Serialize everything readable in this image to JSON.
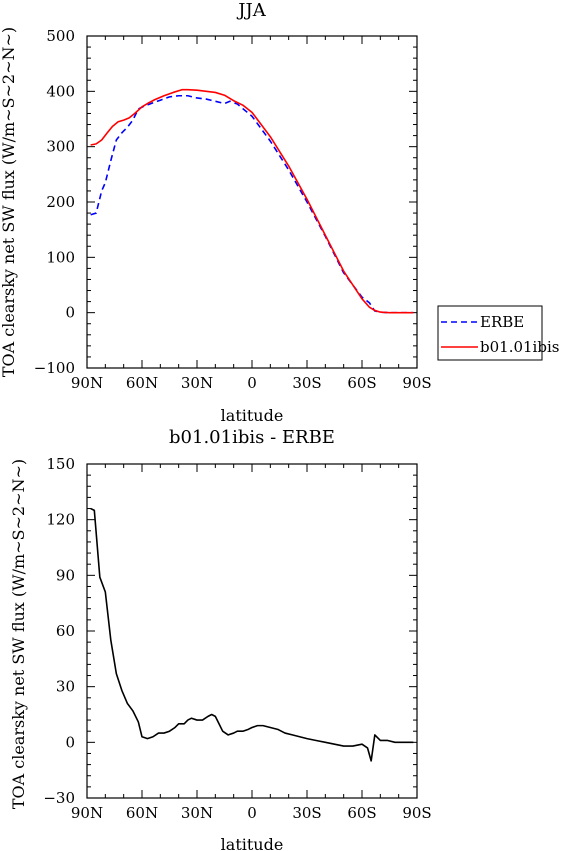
{
  "chart_data": [
    {
      "type": "line",
      "title": "JJA",
      "xlabel": "latitude",
      "ylabel": "TOA clearsky net SW flux (W/m~S~2~N~)",
      "xlim": [
        90,
        -90
      ],
      "ylim": [
        -100,
        500
      ],
      "xticks": [
        90,
        60,
        30,
        0,
        -30,
        -60,
        -90
      ],
      "xtick_labels": [
        "90N",
        "60N",
        "30N",
        "0",
        "30S",
        "60S",
        "90S"
      ],
      "yticks": [
        -100,
        0,
        100,
        200,
        300,
        400,
        500
      ],
      "ytick_labels": [
        "−100",
        "0",
        "100",
        "200",
        "300",
        "400",
        "500"
      ],
      "legend_position": "right",
      "series": [
        {
          "name": "ERBE",
          "color": "#0000ff",
          "dash": "dashed",
          "x": [
            88,
            85,
            82,
            80,
            77,
            74,
            71,
            68,
            65,
            62,
            59,
            55,
            50,
            45,
            40,
            35,
            30,
            25,
            20,
            15,
            12,
            8,
            0,
            -10,
            -20,
            -30,
            -40,
            -50,
            -60,
            -64,
            -67,
            -70,
            -75,
            -80,
            -88
          ],
          "y": [
            177,
            180,
            220,
            235,
            275,
            312,
            325,
            335,
            348,
            368,
            373,
            378,
            384,
            390,
            392,
            392,
            388,
            386,
            382,
            378,
            382,
            377,
            355,
            310,
            258,
            200,
            138,
            72,
            28,
            18,
            3,
            1,
            0,
            0,
            0
          ]
        },
        {
          "name": "b01.01ibis",
          "color": "#ff0000",
          "dash": "solid",
          "x": [
            88,
            85,
            82,
            79,
            76,
            73,
            70,
            67,
            64,
            60,
            57,
            53,
            48,
            43,
            38,
            35,
            30,
            25,
            20,
            15,
            10,
            5,
            0,
            -10,
            -20,
            -30,
            -40,
            -50,
            -60,
            -64,
            -67,
            -70,
            -75,
            -80,
            -88
          ],
          "y": [
            303,
            305,
            312,
            325,
            337,
            345,
            348,
            352,
            360,
            372,
            378,
            385,
            392,
            398,
            403,
            403,
            402,
            400,
            398,
            393,
            383,
            375,
            362,
            318,
            265,
            205,
            140,
            75,
            25,
            10,
            4,
            1,
            0,
            0,
            0
          ]
        }
      ]
    },
    {
      "type": "line",
      "title": "b01.01ibis - ERBE",
      "xlabel": "latitude",
      "ylabel": "TOA clearsky net SW flux (W/m~S~2~N~)",
      "xlim": [
        90,
        -90
      ],
      "ylim": [
        -30,
        150
      ],
      "xticks": [
        90,
        60,
        30,
        0,
        -30,
        -60,
        -90
      ],
      "xtick_labels": [
        "90N",
        "60N",
        "30N",
        "0",
        "30S",
        "60S",
        "90S"
      ],
      "yticks": [
        -30,
        0,
        30,
        60,
        90,
        120,
        150
      ],
      "ytick_labels": [
        "−30",
        "0",
        "30",
        "60",
        "90",
        "120",
        "150"
      ],
      "series": [
        {
          "color": "#000000",
          "dash": "solid",
          "x": [
            88,
            86,
            83,
            80,
            77,
            74,
            71,
            68,
            65,
            62,
            60,
            57,
            54,
            51,
            48,
            45,
            42,
            40,
            37,
            35,
            33,
            30,
            27,
            24,
            22,
            20,
            18,
            16,
            13,
            10,
            8,
            5,
            2,
            0,
            -3,
            -6,
            -10,
            -14,
            -18,
            -22,
            -26,
            -30,
            -35,
            -40,
            -45,
            -50,
            -55,
            -60,
            -63,
            -65,
            -67,
            -70,
            -74,
            -78,
            -82,
            -86,
            -88
          ],
          "y": [
            126,
            125,
            89,
            81,
            55,
            37,
            28,
            21,
            17,
            11,
            3,
            2,
            3,
            5,
            5,
            6,
            8,
            10,
            10,
            12,
            13,
            12,
            12,
            14,
            15,
            14,
            10,
            6,
            4,
            5,
            6,
            6,
            7,
            8,
            9,
            9,
            8,
            7,
            5,
            4,
            3,
            2,
            1,
            0,
            -1,
            -2,
            -2,
            -1,
            -3,
            -10,
            4,
            1,
            1,
            0,
            0,
            0,
            0
          ]
        }
      ]
    }
  ]
}
